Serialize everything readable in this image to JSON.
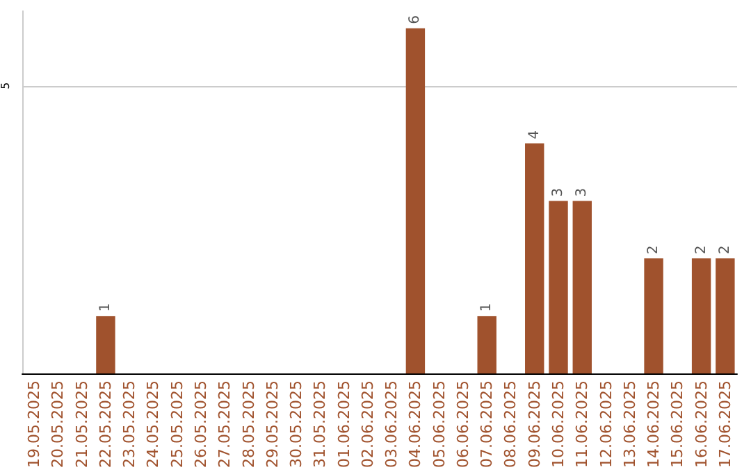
{
  "chart_data": {
    "type": "bar",
    "categories": [
      "19.05.2025",
      "20.05.2025",
      "21.05.2025",
      "22.05.2025",
      "23.05.2025",
      "24.05.2025",
      "25.05.2025",
      "26.05.2025",
      "27.05.2025",
      "28.05.2025",
      "29.05.2025",
      "30.05.2025",
      "31.05.2025",
      "01.06.2025",
      "02.06.2025",
      "03.06.2025",
      "04.06.2025",
      "05.06.2025",
      "06.06.2025",
      "07.06.2025",
      "08.06.2025",
      "09.06.2025",
      "10.06.2025",
      "11.06.2025",
      "12.06.2025",
      "13.06.2025",
      "14.06.2025",
      "15.06.2025",
      "16.06.2025",
      "17.06.2025"
    ],
    "values": [
      0,
      0,
      0,
      1,
      0,
      0,
      0,
      0,
      0,
      0,
      0,
      0,
      0,
      0,
      0,
      0,
      6,
      0,
      0,
      1,
      0,
      4,
      3,
      3,
      0,
      0,
      2,
      0,
      2,
      2
    ],
    "value_labels": [
      null,
      null,
      null,
      "1",
      null,
      null,
      null,
      null,
      null,
      null,
      null,
      null,
      null,
      null,
      null,
      null,
      "6",
      null,
      null,
      "1",
      null,
      "4",
      "3",
      "3",
      null,
      null,
      "2",
      null,
      "2",
      "2"
    ],
    "color": "#a0522d",
    "ylim": [
      0,
      6.3
    ],
    "yticks": [
      {
        "value": 0,
        "label": null
      },
      5
    ],
    "grid": "y"
  }
}
